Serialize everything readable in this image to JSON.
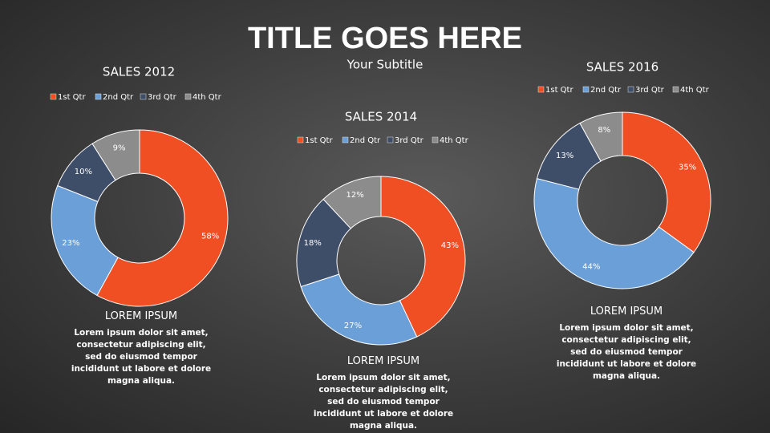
{
  "slide": {
    "title": "TITLE GOES HERE",
    "subtitle": "Your Subtitle"
  },
  "chart_data": [
    {
      "type": "pie",
      "donut": true,
      "title": "SALES 2012",
      "categories": [
        "1st Qtr",
        "2nd Qtr",
        "3rd Qtr",
        "4th Qtr"
      ],
      "values": [
        58,
        23,
        10,
        9
      ],
      "value_labels": [
        "58%",
        "23%",
        "10%",
        "9%"
      ],
      "colors": [
        "#f04e23",
        "#6a9fd8",
        "#3f4e68",
        "#8c8c8c"
      ]
    },
    {
      "type": "pie",
      "donut": true,
      "title": "SALES 2014",
      "categories": [
        "1st Qtr",
        "2nd Qtr",
        "3rd Qtr",
        "4th Qtr"
      ],
      "values": [
        43,
        27,
        18,
        12
      ],
      "value_labels": [
        "43%",
        "27%",
        "18%",
        "12%"
      ],
      "colors": [
        "#f04e23",
        "#6a9fd8",
        "#3f4e68",
        "#8c8c8c"
      ]
    },
    {
      "type": "pie",
      "donut": true,
      "title": "SALES 2016",
      "categories": [
        "1st Qtr",
        "2nd Qtr",
        "3rd Qtr",
        "4th Qtr"
      ],
      "values": [
        35,
        44,
        13,
        8
      ],
      "value_labels": [
        "35%",
        "44%",
        "13%",
        "8%"
      ],
      "colors": [
        "#f04e23",
        "#6a9fd8",
        "#3f4e68",
        "#8c8c8c"
      ]
    }
  ],
  "text_blocks": [
    {
      "heading": "LOREM IPSUM",
      "body": "Lorem ipsum dolor sit amet, consectetur adipiscing elit, sed do eiusmod tempor incididunt ut labore et dolore magna aliqua."
    },
    {
      "heading": "LOREM IPSUM",
      "body": "Lorem ipsum dolor sit amet, consectetur adipiscing elit, sed do eiusmod tempor incididunt ut labore et dolore magna aliqua."
    },
    {
      "heading": "LOREM IPSUM",
      "body": "Lorem ipsum dolor sit amet, consectetur adipiscing elit, sed do eiusmod tempor incididunt ut labore et dolore magna aliqua."
    }
  ]
}
